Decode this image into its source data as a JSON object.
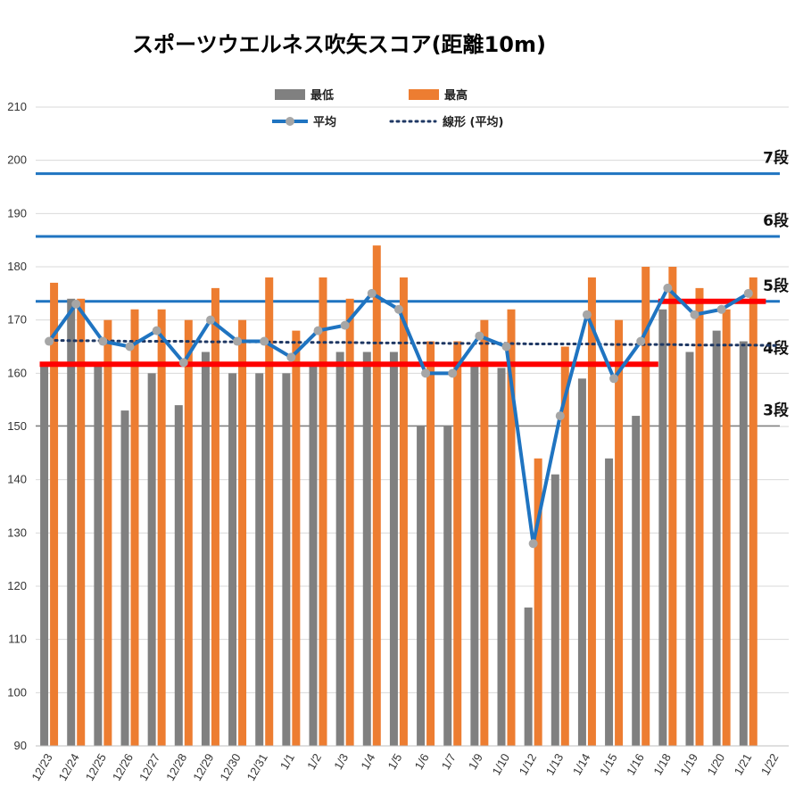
{
  "chart_data": {
    "type": "bar",
    "title": "スポーツウエルネス吹矢スコア(距離10m)",
    "ylim": [
      90,
      210
    ],
    "yticks": [
      90,
      100,
      110,
      120,
      130,
      140,
      150,
      160,
      170,
      180,
      190,
      200,
      210
    ],
    "grid": true,
    "legend_position": "top",
    "categories": [
      "12/23",
      "12/24",
      "12/25",
      "12/26",
      "12/27",
      "12/28",
      "12/29",
      "12/30",
      "12/31",
      "1/1",
      "1/2",
      "1/3",
      "1/4",
      "1/5",
      "1/6",
      "1/7",
      "1/9",
      "1/10",
      "1/12",
      "1/13",
      "1/14",
      "1/15",
      "1/16",
      "1/18",
      "1/19",
      "1/20",
      "1/21",
      "1/22"
    ],
    "series": [
      {
        "name": "最低",
        "kind": "bar",
        "color": "#808080",
        "values": [
          162,
          174,
          162,
          153,
          160,
          154,
          164,
          160,
          160,
          160,
          162,
          164,
          164,
          164,
          150,
          150,
          162,
          161,
          116,
          141,
          159,
          144,
          152,
          172,
          164,
          168,
          166,
          null
        ]
      },
      {
        "name": "最高",
        "kind": "bar",
        "color": "#ed7d31",
        "values": [
          177,
          174,
          170,
          172,
          172,
          170,
          176,
          170,
          178,
          168,
          178,
          174,
          184,
          178,
          166,
          166,
          170,
          172,
          144,
          165,
          178,
          170,
          180,
          180,
          176,
          172,
          178,
          null
        ]
      },
      {
        "name": "平均",
        "kind": "line",
        "color": "#1f74c1",
        "marker_color": "#a6a6a6",
        "values": [
          166,
          173,
          166,
          165,
          168,
          162,
          170,
          166,
          166,
          163,
          168,
          169,
          175,
          172,
          160,
          160,
          167,
          165,
          128,
          152,
          171,
          159,
          166,
          176,
          171,
          172,
          175,
          null
        ]
      },
      {
        "name": "線形 (平均)",
        "kind": "trendline",
        "color": "#1f3864",
        "values": [
          166.2,
          166.1,
          166.1,
          166.0,
          166.0,
          166.0,
          165.9,
          165.9,
          165.9,
          165.8,
          165.8,
          165.8,
          165.7,
          165.7,
          165.7,
          165.6,
          165.6,
          165.6,
          165.5,
          165.5,
          165.5,
          165.4,
          165.4,
          165.4,
          165.3,
          165.3,
          165.3,
          165.2
        ]
      }
    ],
    "rank_lines": [
      {
        "label": "7段",
        "value": 197.5,
        "color": "#1f74c1"
      },
      {
        "label": "6段",
        "value": 185.7,
        "color": "#1f74c1"
      },
      {
        "label": "5段",
        "value": 173.5,
        "color": "#1f74c1",
        "label_color": "#1f74c1"
      },
      {
        "label": "4段",
        "value": 161.7,
        "color": "#ff0000"
      },
      {
        "label": "3段",
        "value": 150.1,
        "color": "#808080"
      }
    ],
    "highlights": [
      {
        "value": 161.7,
        "from": "12/23",
        "to": "1/16",
        "color": "#ff0000"
      },
      {
        "value": 173.5,
        "from": "1/18",
        "to": "1/21",
        "color": "#ff0000"
      }
    ]
  }
}
